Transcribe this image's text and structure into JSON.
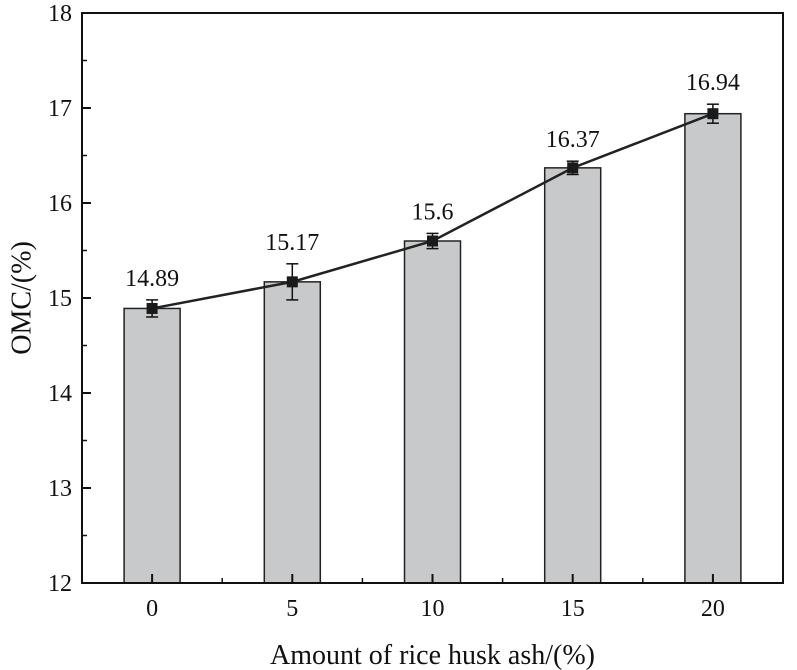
{
  "chart_data": {
    "type": "bar",
    "xlabel": "Amount of rice husk ash/(%)",
    "ylabel": "OMC/(%)",
    "categories": [
      "0",
      "5",
      "10",
      "15",
      "20"
    ],
    "values": [
      14.89,
      15.17,
      15.6,
      16.37,
      16.94
    ],
    "data_labels": [
      "14.89",
      "15.17",
      "15.6",
      "16.37",
      "16.94"
    ],
    "error": [
      0.09,
      0.19,
      0.08,
      0.07,
      0.1
    ],
    "line_overlay": true,
    "ylim": [
      12,
      18
    ],
    "yticks": [
      "12",
      "13",
      "14",
      "15",
      "16",
      "17",
      "18"
    ],
    "grid": false,
    "legend": "none",
    "colors": {
      "bar_fill": "#c8c9cb",
      "bar_stroke": "#222222",
      "line": "#222222",
      "marker": "#1a1a1a"
    }
  }
}
